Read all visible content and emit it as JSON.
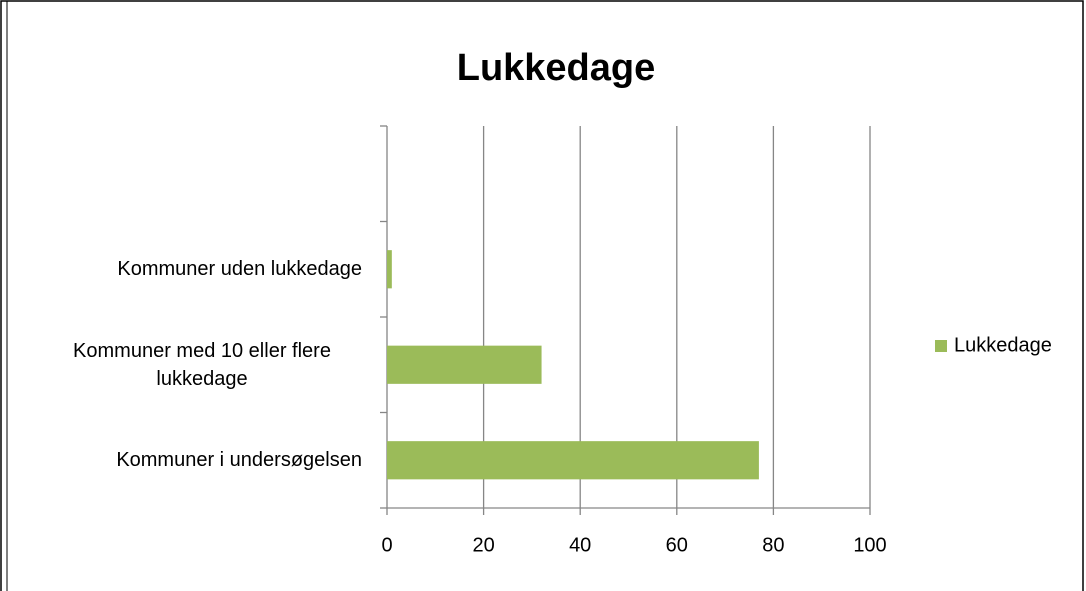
{
  "chart_data": {
    "type": "bar",
    "orientation": "horizontal",
    "title": "Lukkedage",
    "categories": [
      "Kommuner i undersøgelsen",
      "Kommuner med 10 eller flere lukkedage",
      "Kommuner uden lukkedage",
      null
    ],
    "series": [
      {
        "name": "Lukkedage",
        "color": "#9bbb59",
        "values": [
          77,
          32,
          1,
          null
        ]
      }
    ],
    "xlim": [
      0,
      100
    ],
    "xticks": [
      0,
      20,
      40,
      60,
      80,
      100
    ],
    "grid": true,
    "legend": "right"
  }
}
